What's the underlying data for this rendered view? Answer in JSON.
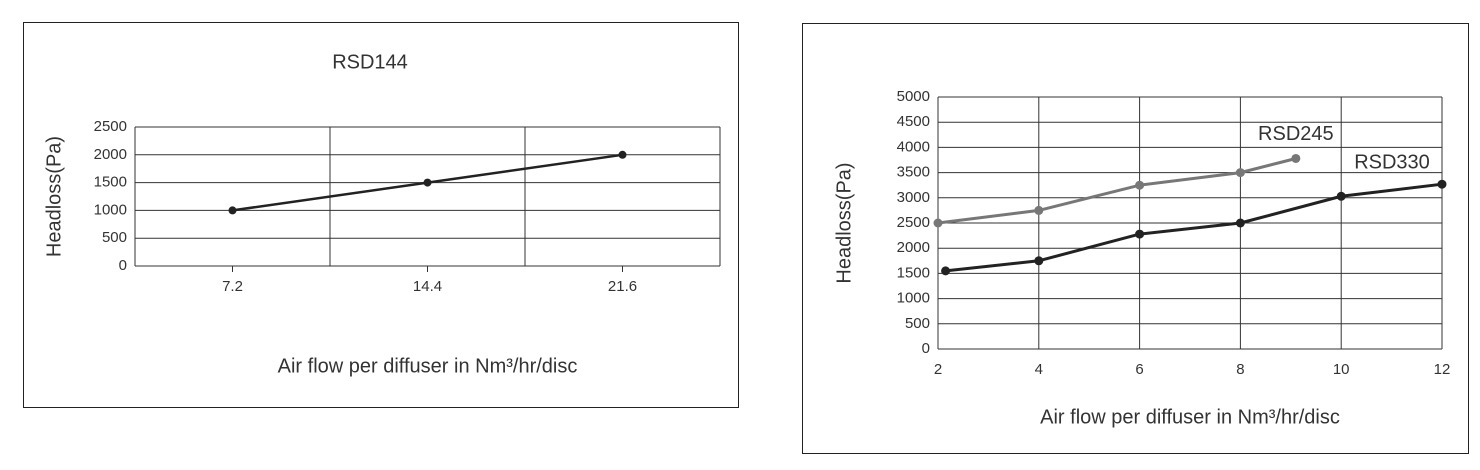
{
  "chart_data": [
    {
      "type": "line",
      "title": "RSD144",
      "y_label": "Headloss(Pa)",
      "x_label": "Air flow per diffuser in Nm³/hr/disc",
      "categories": [
        "7.2",
        "14.4",
        "21.6"
      ],
      "values": [
        1000,
        1500,
        2000
      ],
      "color": "#222222",
      "ylim": [
        0,
        2500
      ],
      "yticks": [
        0,
        500,
        1000,
        1500,
        2000,
        2500
      ],
      "grid": true
    },
    {
      "type": "line",
      "y_label": "Headloss(Pa)",
      "x_label": "Air flow per diffuser in Nm³/hr/disc",
      "xlim": [
        2,
        12
      ],
      "xticks": [
        2,
        4,
        6,
        8,
        10,
        12
      ],
      "ylim": [
        0,
        5000
      ],
      "yticks": [
        0,
        500,
        1000,
        1500,
        2000,
        2500,
        3000,
        3500,
        4000,
        4500,
        5000
      ],
      "grid": true,
      "series": [
        {
          "name": "RSD245",
          "color": "#777777",
          "x": [
            2,
            4,
            6,
            8,
            9.1
          ],
          "values": [
            2500,
            2750,
            3250,
            3500,
            3780
          ]
        },
        {
          "name": "RSD330",
          "color": "#222222",
          "x": [
            2.15,
            4,
            6,
            8,
            10,
            12
          ],
          "values": [
            1550,
            1750,
            2280,
            2500,
            3030,
            3270
          ]
        }
      ]
    }
  ]
}
